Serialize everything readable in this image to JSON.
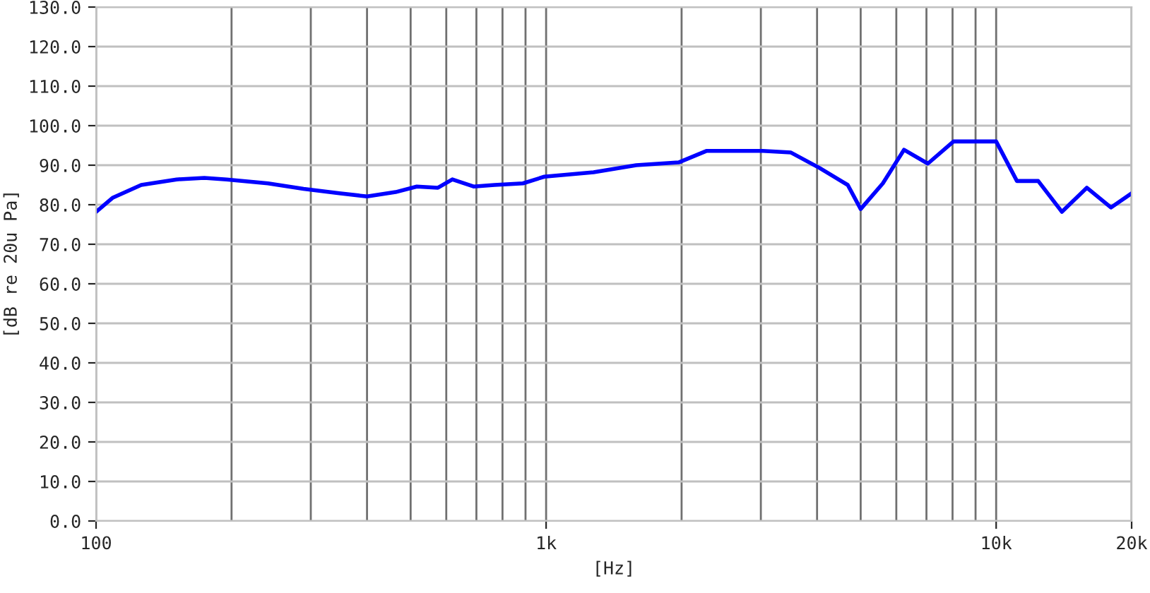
{
  "chart_data": {
    "type": "line",
    "xlabel": "[Hz]",
    "ylabel": "[dB re 20u Pa]",
    "log": "x",
    "x": [
      100,
      109,
      126,
      151,
      174,
      195,
      241,
      289,
      347,
      400,
      463,
      516,
      575,
      619,
      690,
      768,
      888,
      991,
      1275,
      1586,
      1970,
      2270,
      3030,
      3500,
      4050,
      4680,
      5000,
      5600,
      6240,
      7050,
      8040,
      10000,
      11120,
      12400,
      14000,
      15900,
      17990,
      20000
    ],
    "series": [
      {
        "color": "#0000ff",
        "values": [
          78.2,
          81.8,
          85.0,
          86.4,
          86.8,
          86.4,
          85.4,
          84.0,
          82.9,
          82.1,
          83.2,
          84.6,
          84.3,
          86.4,
          84.6,
          85.0,
          85.4,
          87.1,
          88.2,
          90.0,
          90.7,
          93.6,
          93.6,
          93.2,
          89.3,
          85.0,
          78.9,
          85.4,
          93.9,
          90.4,
          96.0,
          96.0,
          86.0,
          86.0,
          78.2,
          84.3,
          79.3,
          82.9
        ]
      }
    ],
    "xlim": [
      100,
      20000
    ],
    "ylim": [
      0,
      130
    ],
    "xticks": [
      100,
      {
        "value": 200,
        "label": null
      },
      {
        "value": 300,
        "label": null
      },
      {
        "value": 400,
        "label": null
      },
      {
        "value": 500,
        "label": null
      },
      {
        "value": 600,
        "label": null
      },
      {
        "value": 700,
        "label": null
      },
      {
        "value": 800,
        "label": null
      },
      {
        "value": 900,
        "label": null
      },
      {
        "value": 1000,
        "label": "1k"
      },
      {
        "value": 2000,
        "label": null
      },
      {
        "value": 3000,
        "label": null
      },
      {
        "value": 4000,
        "label": null
      },
      {
        "value": 5000,
        "label": null
      },
      {
        "value": 6000,
        "label": null
      },
      {
        "value": 7000,
        "label": null
      },
      {
        "value": 8000,
        "label": null
      },
      {
        "value": 9000,
        "label": null
      },
      {
        "value": 10000,
        "label": "10k"
      },
      {
        "value": 20000,
        "label": "20k"
      }
    ],
    "yticks": [
      {
        "value": 0,
        "label": "0.0"
      },
      {
        "value": 10,
        "label": "10.0"
      },
      {
        "value": 20,
        "label": "20.0"
      },
      {
        "value": 30,
        "label": "30.0"
      },
      {
        "value": 40,
        "label": "40.0"
      },
      {
        "value": 50,
        "label": "50.0"
      },
      {
        "value": 60,
        "label": "60.0"
      },
      {
        "value": 70,
        "label": "70.0"
      },
      {
        "value": 80,
        "label": "80.0"
      },
      {
        "value": 90,
        "label": "90.0"
      },
      {
        "value": 100,
        "label": "100.0"
      },
      {
        "value": 110,
        "label": "110.0"
      },
      {
        "value": 120,
        "label": "120.0"
      },
      {
        "value": 130,
        "label": "130.0"
      }
    ],
    "grid": true,
    "legend": false,
    "marker": "none",
    "line_style": "solid"
  }
}
